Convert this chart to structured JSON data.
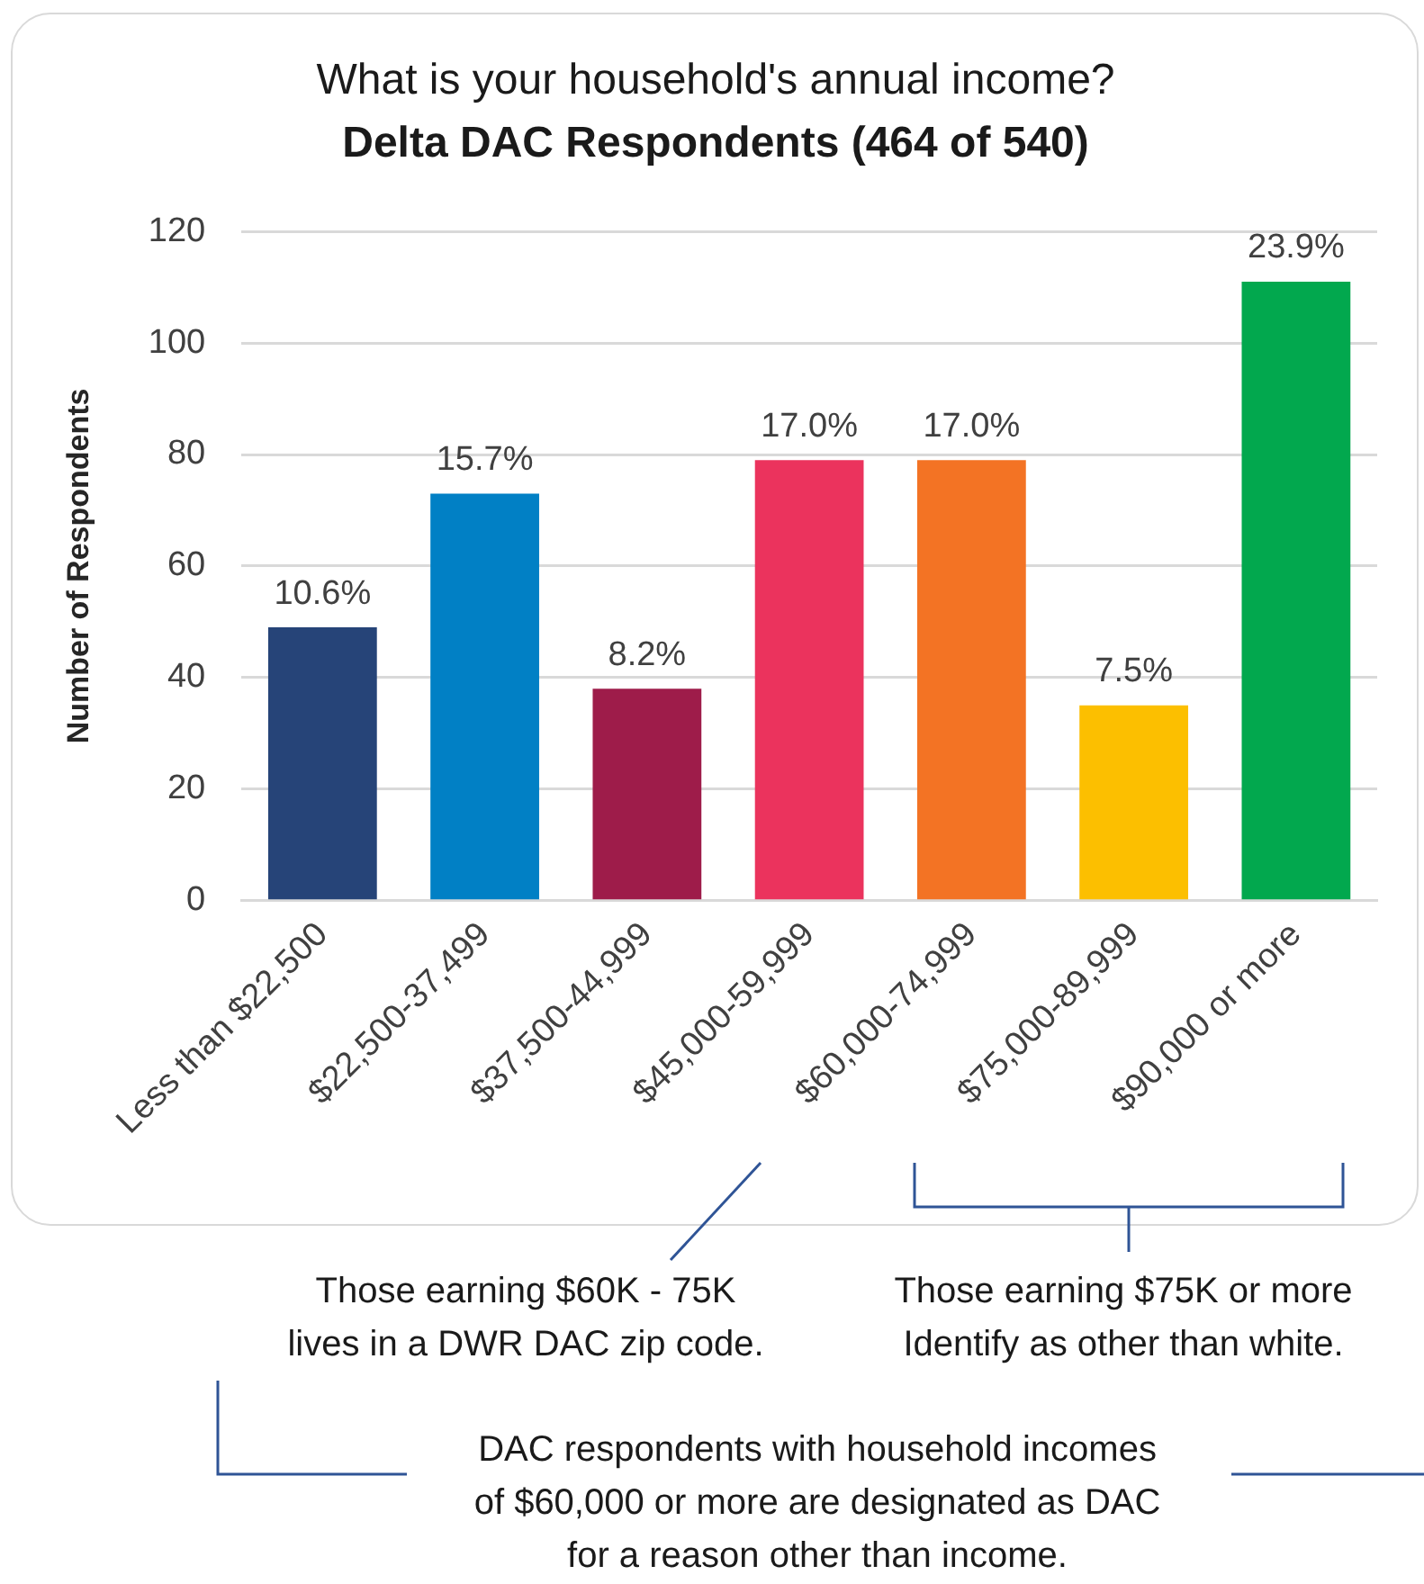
{
  "chart_data": {
    "type": "bar",
    "title": "What is your household's annual income?",
    "subtitle": "Delta DAC Respondents (464 of 540)",
    "ylabel": "Number of Respondents",
    "categories": [
      "Less than $22,500",
      "$22,500-37,499",
      "$37,500-44,999",
      "$45,000-59,999",
      "$60,000-74,999",
      "$75,000-89,999",
      "$90,000 or more"
    ],
    "values": [
      49,
      73,
      38,
      79,
      79,
      35,
      111
    ],
    "colors": [
      "#264478",
      "#0180c5",
      "#9e1c4a",
      "#eb335d",
      "#f37324",
      "#fcbf00",
      "#02a84e"
    ],
    "ylim": [
      0,
      120
    ],
    "yticks": [
      0,
      20,
      40,
      60,
      80,
      100,
      120
    ],
    "grid": "y",
    "annotations": [
      {
        "text": "10.6%",
        "x": "Less than $22,500",
        "y": 49
      },
      {
        "text": "15.7%",
        "x": "$22,500-37,499",
        "y": 73
      },
      {
        "text": "8.2%",
        "x": "$37,500-44,999",
        "y": 38
      },
      {
        "text": "17.0%",
        "x": "$45,000-59,999",
        "y": 79
      },
      {
        "text": "17.0%",
        "x": "$60,000-74,999",
        "y": 79
      },
      {
        "text": "7.5%",
        "x": "$75,000-89,999",
        "y": 35
      },
      {
        "text": "23.9%",
        "x": "$90,000 or more",
        "y": 111
      },
      "Those earning $60K - 75K lives in a DWR DAC zip code.",
      "Those earning $75K or more Identify as other than white.",
      "DAC respondents with household incomes of $60,000 or more are designated as DAC for a reason other than income."
    ]
  }
}
